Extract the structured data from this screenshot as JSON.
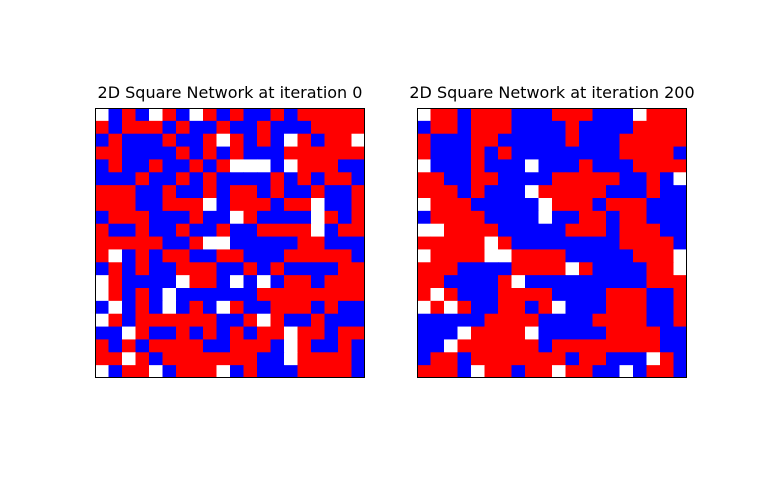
{
  "colors": {
    "1": "#ff0000",
    "-1": "#0000ff",
    "0": "#ffffff"
  },
  "chart_data": [
    {
      "type": "heatmap",
      "title": "2D Square Network at iteration 0",
      "xlabel": "",
      "ylabel": "",
      "grid": false,
      "legend": "none",
      "value_encoding": {
        "1": "red",
        "-1": "blue",
        "0": "white"
      },
      "rows": [
        [
          0,
          -1,
          1,
          -1,
          0,
          1,
          -1,
          0,
          1,
          -1,
          1,
          -1,
          -1,
          1,
          -1,
          1,
          1,
          1,
          1,
          1
        ],
        [
          1,
          -1,
          1,
          1,
          1,
          -1,
          1,
          -1,
          -1,
          1,
          -1,
          -1,
          1,
          -1,
          -1,
          -1,
          1,
          1,
          1,
          1
        ],
        [
          -1,
          1,
          -1,
          -1,
          -1,
          1,
          -1,
          -1,
          1,
          0,
          1,
          -1,
          1,
          -1,
          0,
          1,
          -1,
          1,
          1,
          0
        ],
        [
          1,
          1,
          -1,
          -1,
          -1,
          -1,
          1,
          -1,
          1,
          -1,
          1,
          -1,
          -1,
          -1,
          1,
          1,
          1,
          1,
          1,
          1
        ],
        [
          -1,
          1,
          -1,
          -1,
          1,
          -1,
          -1,
          1,
          -1,
          1,
          0,
          0,
          0,
          -1,
          0,
          1,
          1,
          1,
          -1,
          -1
        ],
        [
          -1,
          -1,
          -1,
          1,
          -1,
          -1,
          1,
          -1,
          1,
          -1,
          -1,
          -1,
          -1,
          1,
          -1,
          1,
          -1,
          1,
          1,
          -1
        ],
        [
          1,
          1,
          1,
          -1,
          -1,
          1,
          -1,
          -1,
          1,
          -1,
          1,
          1,
          -1,
          1,
          -1,
          -1,
          1,
          -1,
          -1,
          1
        ],
        [
          1,
          1,
          1,
          -1,
          -1,
          1,
          1,
          1,
          0,
          -1,
          1,
          1,
          1,
          -1,
          1,
          1,
          0,
          -1,
          -1,
          1
        ],
        [
          -1,
          1,
          1,
          1,
          -1,
          -1,
          -1,
          1,
          -1,
          -1,
          0,
          1,
          -1,
          -1,
          -1,
          -1,
          0,
          1,
          -1,
          1
        ],
        [
          1,
          -1,
          -1,
          1,
          -1,
          -1,
          1,
          -1,
          -1,
          1,
          -1,
          -1,
          1,
          1,
          1,
          1,
          0,
          -1,
          1,
          1
        ],
        [
          1,
          1,
          1,
          1,
          1,
          -1,
          -1,
          1,
          0,
          0,
          -1,
          -1,
          -1,
          -1,
          -1,
          1,
          1,
          -1,
          -1,
          -1
        ],
        [
          1,
          0,
          -1,
          1,
          -1,
          1,
          1,
          -1,
          -1,
          1,
          1,
          -1,
          -1,
          -1,
          1,
          1,
          1,
          1,
          1,
          -1
        ],
        [
          -1,
          1,
          -1,
          1,
          -1,
          -1,
          1,
          1,
          1,
          -1,
          -1,
          1,
          -1,
          1,
          -1,
          -1,
          -1,
          -1,
          1,
          1
        ],
        [
          0,
          1,
          -1,
          -1,
          -1,
          -1,
          0,
          1,
          1,
          -1,
          0,
          -1,
          0,
          -1,
          1,
          1,
          -1,
          1,
          1,
          1
        ],
        [
          0,
          1,
          -1,
          1,
          -1,
          0,
          -1,
          -1,
          -1,
          -1,
          -1,
          -1,
          1,
          1,
          1,
          1,
          1,
          1,
          1,
          1
        ],
        [
          -1,
          0,
          -1,
          1,
          -1,
          0,
          -1,
          1,
          -1,
          0,
          1,
          -1,
          -1,
          1,
          1,
          1,
          -1,
          1,
          -1,
          -1
        ],
        [
          0,
          1,
          -1,
          1,
          1,
          1,
          1,
          1,
          1,
          -1,
          -1,
          1,
          0,
          1,
          -1,
          -1,
          1,
          -1,
          -1,
          -1
        ],
        [
          -1,
          -1,
          0,
          1,
          -1,
          -1,
          1,
          -1,
          1,
          -1,
          1,
          -1,
          1,
          1,
          0,
          1,
          1,
          -1,
          1,
          1
        ],
        [
          1,
          -1,
          1,
          -1,
          1,
          1,
          1,
          1,
          -1,
          -1,
          1,
          1,
          1,
          -1,
          0,
          1,
          -1,
          -1,
          1,
          -1
        ],
        [
          1,
          1,
          0,
          1,
          -1,
          1,
          1,
          1,
          1,
          1,
          1,
          1,
          -1,
          -1,
          0,
          1,
          1,
          1,
          1,
          -1
        ],
        [
          0,
          -1,
          1,
          1,
          0,
          -1,
          1,
          1,
          1,
          0,
          -1,
          1,
          -1,
          -1,
          -1,
          1,
          1,
          1,
          1,
          -1
        ]
      ]
    },
    {
      "type": "heatmap",
      "title": "2D Square Network at iteration 200",
      "xlabel": "",
      "ylabel": "",
      "grid": false,
      "legend": "none",
      "value_encoding": {
        "1": "red",
        "-1": "blue",
        "0": "white"
      },
      "rows": [
        [
          0,
          1,
          1,
          -1,
          1,
          1,
          1,
          -1,
          -1,
          -1,
          1,
          1,
          1,
          -1,
          -1,
          -1,
          0,
          1,
          1,
          1
        ],
        [
          -1,
          1,
          1,
          -1,
          1,
          1,
          1,
          -1,
          -1,
          -1,
          -1,
          1,
          -1,
          -1,
          -1,
          -1,
          1,
          1,
          1,
          1
        ],
        [
          1,
          -1,
          -1,
          -1,
          1,
          1,
          -1,
          -1,
          -1,
          -1,
          -1,
          1,
          -1,
          -1,
          -1,
          1,
          1,
          1,
          1,
          1
        ],
        [
          1,
          -1,
          -1,
          -1,
          1,
          -1,
          1,
          -1,
          -1,
          -1,
          -1,
          -1,
          -1,
          -1,
          -1,
          1,
          1,
          1,
          1,
          -1
        ],
        [
          0,
          -1,
          -1,
          -1,
          1,
          -1,
          -1,
          -1,
          0,
          -1,
          -1,
          -1,
          1,
          -1,
          -1,
          -1,
          1,
          1,
          1,
          1
        ],
        [
          1,
          1,
          -1,
          -1,
          1,
          1,
          -1,
          -1,
          -1,
          -1,
          1,
          1,
          1,
          1,
          1,
          -1,
          -1,
          1,
          -1,
          0
        ],
        [
          1,
          1,
          1,
          -1,
          1,
          -1,
          -1,
          -1,
          0,
          1,
          1,
          1,
          1,
          1,
          -1,
          -1,
          -1,
          1,
          -1,
          -1
        ],
        [
          0,
          1,
          1,
          1,
          -1,
          -1,
          -1,
          -1,
          -1,
          0,
          1,
          1,
          1,
          -1,
          1,
          1,
          1,
          -1,
          -1,
          -1
        ],
        [
          -1,
          1,
          1,
          1,
          1,
          -1,
          -1,
          -1,
          -1,
          0,
          -1,
          -1,
          1,
          1,
          -1,
          1,
          1,
          -1,
          -1,
          -1
        ],
        [
          0,
          0,
          1,
          1,
          1,
          1,
          -1,
          -1,
          -1,
          -1,
          -1,
          1,
          1,
          1,
          -1,
          1,
          1,
          1,
          -1,
          -1
        ],
        [
          1,
          1,
          1,
          1,
          1,
          0,
          1,
          -1,
          -1,
          -1,
          -1,
          -1,
          -1,
          -1,
          -1,
          1,
          1,
          1,
          1,
          -1
        ],
        [
          0,
          1,
          1,
          1,
          1,
          0,
          0,
          1,
          1,
          1,
          1,
          -1,
          -1,
          -1,
          -1,
          -1,
          1,
          1,
          1,
          0
        ],
        [
          1,
          1,
          1,
          -1,
          -1,
          -1,
          -1,
          1,
          1,
          1,
          1,
          0,
          1,
          -1,
          -1,
          -1,
          -1,
          1,
          1,
          0
        ],
        [
          1,
          1,
          -1,
          -1,
          -1,
          -1,
          1,
          0,
          -1,
          -1,
          -1,
          -1,
          -1,
          -1,
          -1,
          -1,
          -1,
          1,
          1,
          1
        ],
        [
          1,
          0,
          1,
          -1,
          -1,
          -1,
          1,
          1,
          1,
          1,
          -1,
          -1,
          -1,
          -1,
          1,
          1,
          1,
          -1,
          -1,
          1
        ],
        [
          0,
          1,
          0,
          1,
          -1,
          -1,
          1,
          1,
          -1,
          1,
          0,
          -1,
          -1,
          -1,
          1,
          1,
          1,
          -1,
          -1,
          1
        ],
        [
          -1,
          -1,
          -1,
          -1,
          -1,
          1,
          1,
          1,
          1,
          -1,
          -1,
          -1,
          -1,
          1,
          1,
          1,
          1,
          -1,
          -1,
          1
        ],
        [
          -1,
          -1,
          -1,
          0,
          1,
          1,
          1,
          1,
          0,
          -1,
          -1,
          -1,
          -1,
          -1,
          1,
          1,
          1,
          1,
          -1,
          -1
        ],
        [
          -1,
          -1,
          0,
          1,
          1,
          1,
          1,
          1,
          1,
          -1,
          1,
          1,
          1,
          1,
          1,
          1,
          1,
          1,
          -1,
          -1
        ],
        [
          -1,
          1,
          1,
          -1,
          1,
          1,
          1,
          1,
          1,
          1,
          1,
          -1,
          1,
          1,
          -1,
          -1,
          -1,
          0,
          1,
          -1
        ],
        [
          1,
          1,
          1,
          -1,
          0,
          1,
          1,
          -1,
          1,
          1,
          0,
          1,
          1,
          -1,
          -1,
          0,
          -1,
          1,
          1,
          -1
        ]
      ]
    }
  ]
}
